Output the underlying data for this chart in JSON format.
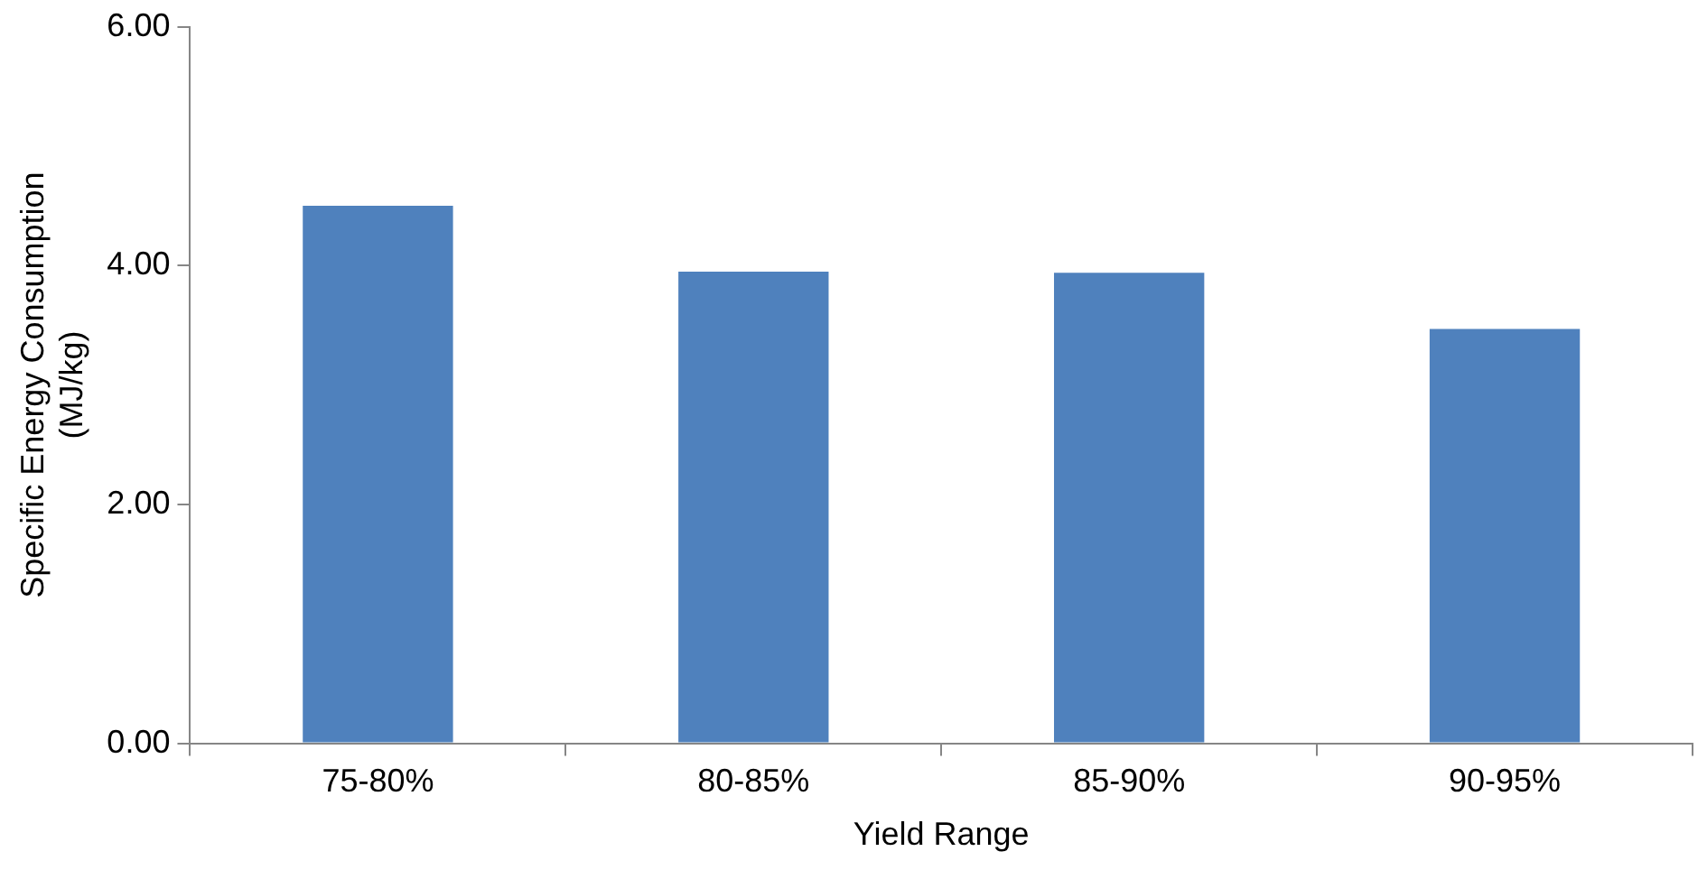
{
  "chart_data": {
    "type": "bar",
    "xlabel": "Yield Range",
    "ylabel": "Specific Energy Consumption (MJ/kg)",
    "categories": [
      "75-80%",
      "80-85%",
      "85-90%",
      "90-95%"
    ],
    "values": [
      4.5,
      3.95,
      3.94,
      3.47
    ],
    "color": "#4f81bd",
    "ylim": [
      0,
      6
    ],
    "yticks": [
      {
        "value": 0,
        "label": "0.00"
      },
      {
        "value": 2,
        "label": "2.00"
      },
      {
        "value": 4,
        "label": "4.00"
      },
      {
        "value": 6,
        "label": "6.00"
      }
    ],
    "grid": false,
    "legend": false
  }
}
